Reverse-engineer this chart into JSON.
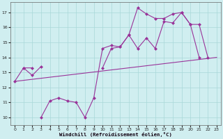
{
  "bg_color": "#d0eef0",
  "grid_color": "#a8d8d8",
  "line_color": "#993399",
  "xlabel": "Windchill (Refroidissement éolien,°C)",
  "curve_straight": {
    "x": [
      0,
      23
    ],
    "y": [
      12.4,
      14.0
    ]
  },
  "curve_zigzag": {
    "segments": [
      {
        "x": [
          0,
          1,
          2
        ],
        "y": [
          12.4,
          13.3,
          13.3
        ]
      },
      {
        "x": [
          3,
          4,
          5,
          6,
          7,
          8,
          9,
          10,
          11,
          12,
          13,
          14,
          15,
          16,
          17,
          18,
          19,
          20,
          21,
          22
        ],
        "y": [
          10.0,
          11.1,
          11.3,
          11.1,
          11.0,
          10.0,
          11.3,
          14.6,
          14.8,
          14.7,
          15.5,
          14.6,
          15.3,
          14.6,
          16.4,
          16.3,
          17.0,
          16.2,
          16.2,
          14.0
        ]
      }
    ]
  },
  "curve_top": {
    "x": [
      1,
      2,
      3,
      10,
      11,
      12,
      13,
      14,
      15,
      16,
      17,
      18,
      19,
      20,
      21
    ],
    "y": [
      13.3,
      12.8,
      13.4,
      13.3,
      14.6,
      14.7,
      15.5,
      17.3,
      16.9,
      16.6,
      16.6,
      16.9,
      17.0,
      16.2,
      14.0
    ]
  },
  "ylim": [
    9.5,
    17.7
  ],
  "xlim": [
    -0.5,
    23.5
  ],
  "yticks": [
    10,
    11,
    12,
    13,
    14,
    15,
    16,
    17
  ],
  "xticks": [
    0,
    1,
    2,
    3,
    4,
    5,
    6,
    7,
    8,
    9,
    10,
    11,
    12,
    13,
    14,
    15,
    16,
    17,
    18,
    19,
    20,
    21,
    22,
    23
  ],
  "linewidth": 0.8,
  "markersize": 2.5
}
